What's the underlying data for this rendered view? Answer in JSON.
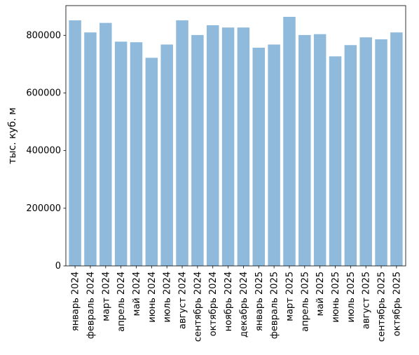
{
  "chart_data": {
    "type": "bar",
    "title": "",
    "xlabel": "",
    "ylabel": "тыс. куб. м",
    "categories": [
      "январь 2024",
      "февраль 2024",
      "март 2024",
      "апрель 2024",
      "май 2024",
      "июнь 2024",
      "июль 2024",
      "август 2024",
      "сентябрь 2024",
      "октябрь 2024",
      "ноябрь 2024",
      "декабрь 2024",
      "январь 2025",
      "февраль 2025",
      "март 2025",
      "апрель 2025",
      "май 2025",
      "июнь 2025",
      "июль 2025",
      "август 2025",
      "сентябрь 2025",
      "октябрь 2025"
    ],
    "values": [
      852000,
      810000,
      843000,
      778000,
      776000,
      722000,
      768000,
      852000,
      801000,
      835000,
      827000,
      827000,
      757000,
      768000,
      864000,
      801000,
      804000,
      727000,
      766000,
      793000,
      786000,
      810000
    ],
    "ylim": [
      0,
      903000
    ],
    "yticks": [
      0,
      200000,
      400000,
      600000,
      800000
    ],
    "ytick_labels": [
      "0",
      "200000",
      "400000",
      "600000",
      "800000"
    ],
    "grid": false,
    "bar_color": "#8fbadb"
  }
}
